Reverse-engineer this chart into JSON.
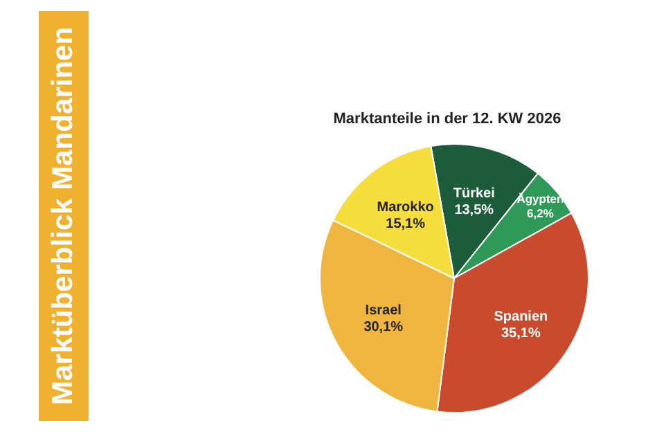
{
  "chart_data": {
    "type": "pie",
    "title": "Marktüberblick Mandarinen",
    "subtitle": "Marktanteile in der 12. KW 2026",
    "categories": [
      "Türkei",
      "Ägypten",
      "Spanien",
      "Israel",
      "Marokko"
    ],
    "values": [
      13.5,
      6.2,
      35.1,
      30.1,
      15.1
    ],
    "value_labels": [
      "13,5%",
      "6,2%",
      "35,1%",
      "30,1%",
      "15,1%"
    ],
    "colors": [
      "#1d5c3a",
      "#2f9a58",
      "#c94a2c",
      "#f0b53e",
      "#f5dd3c"
    ],
    "legend": false
  }
}
